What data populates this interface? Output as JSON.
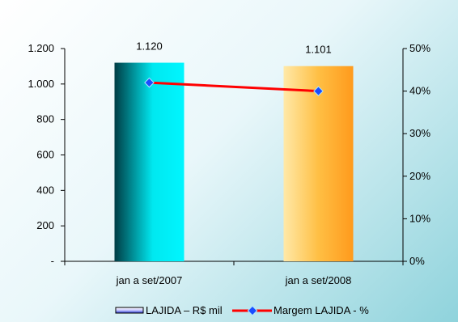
{
  "chart_data": {
    "type": "bar",
    "categories": [
      "jan a set/2007",
      "jan a set/2008"
    ],
    "series": [
      {
        "name": "LAJIDA – R$ mil",
        "type": "bar",
        "axis": "left",
        "values": [
          1120,
          1101
        ],
        "data_labels": [
          "1.120",
          "1.101"
        ]
      },
      {
        "name": "Margem LAJIDA - %",
        "type": "line",
        "axis": "right",
        "values": [
          42,
          40
        ]
      }
    ],
    "ylim_left": [
      0,
      1200
    ],
    "ylim_right": [
      0,
      50
    ],
    "yticks_left": [
      {
        "value": 0,
        "label": "-"
      },
      {
        "value": 200,
        "label": "200"
      },
      {
        "value": 400,
        "label": "400"
      },
      {
        "value": 600,
        "label": "600"
      },
      {
        "value": 800,
        "label": "800"
      },
      {
        "value": 1000,
        "label": "1.000"
      },
      {
        "value": 1200,
        "label": "1.200"
      }
    ],
    "yticks_right": [
      {
        "value": 0,
        "label": "0%"
      },
      {
        "value": 10,
        "label": "10%"
      },
      {
        "value": 20,
        "label": "20%"
      },
      {
        "value": 30,
        "label": "30%"
      },
      {
        "value": 40,
        "label": "40%"
      },
      {
        "value": 50,
        "label": "50%"
      }
    ],
    "grid": false,
    "legend_position": "bottom",
    "colors": {
      "bar_2007": "#00d8e0",
      "bar_2008": "#ffb53a",
      "line": "#ff0000",
      "marker": "#1a4dff",
      "legend_bar": "#3344cc"
    }
  }
}
